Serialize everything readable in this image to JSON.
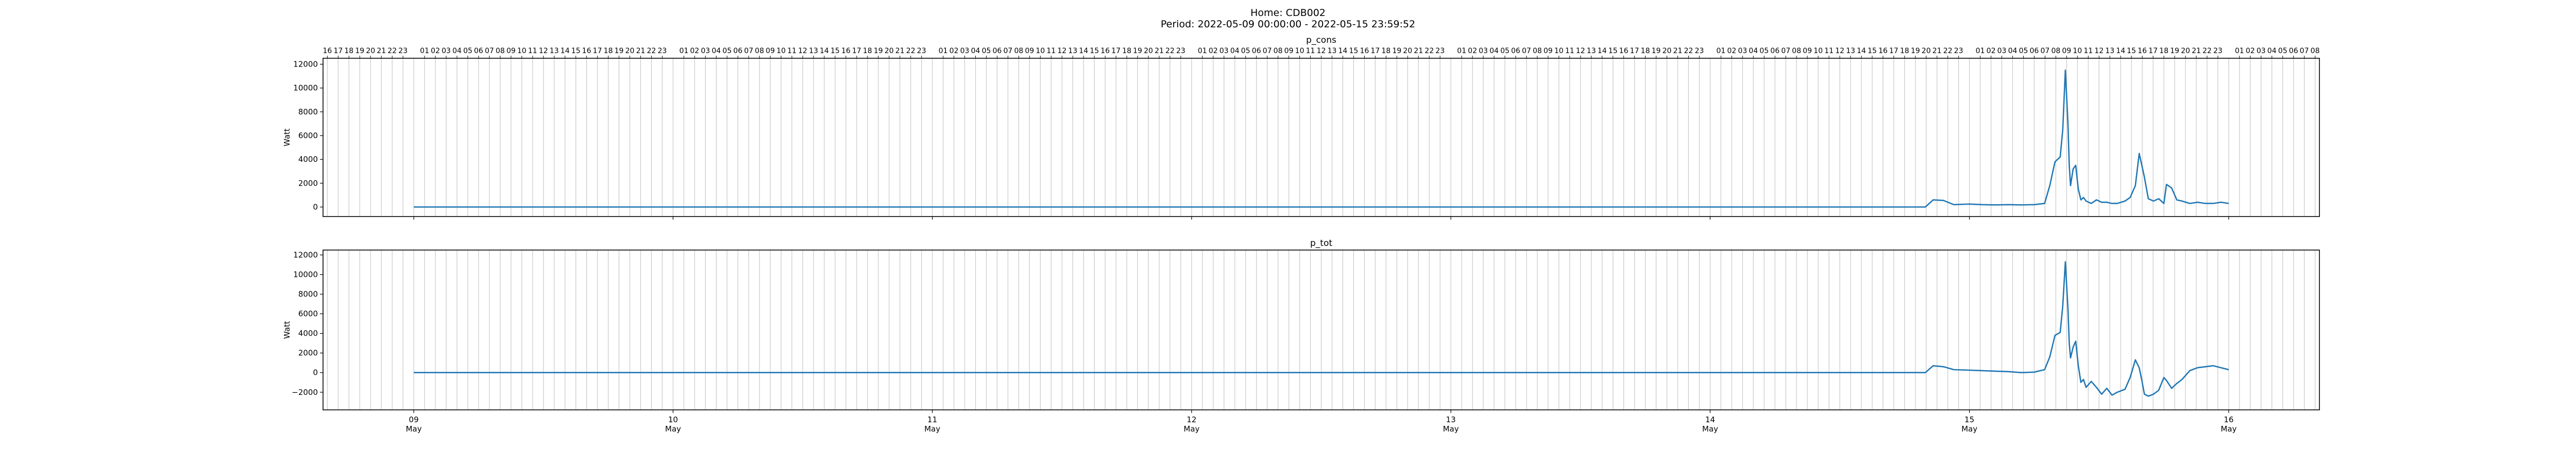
{
  "header": {
    "title_line1": "Home: CDB002",
    "title_line2": "Period: 2022-05-09 00:00:00 - 2022-05-15 23:59:52"
  },
  "colors": {
    "line": "#1f77b4",
    "hour_grid": "#c8c8c8",
    "axis": "#000000"
  },
  "chart_data": [
    {
      "type": "line",
      "title": "p_cons",
      "ylabel": "Watt",
      "xlabel": "",
      "ylim": [
        -800,
        12500
      ],
      "yticks": [
        0,
        2000,
        4000,
        6000,
        8000,
        10000,
        12000
      ],
      "xlim": [
        -0.35,
        7.35
      ],
      "grid": "hourly vertical lines",
      "top_hour_labels": true,
      "bottom_tick_labels": false,
      "series": [
        {
          "name": "p_cons",
          "x": [
            0,
            5.83,
            5.86,
            5.9,
            5.94,
            6.0,
            6.05,
            6.1,
            6.15,
            6.2,
            6.25,
            6.29,
            6.31,
            6.33,
            6.35,
            6.36,
            6.37,
            6.38,
            6.385,
            6.39,
            6.4,
            6.41,
            6.42,
            6.43,
            6.44,
            6.45,
            6.47,
            6.49,
            6.51,
            6.53,
            6.55,
            6.57,
            6.6,
            6.62,
            6.64,
            6.655,
            6.665,
            6.675,
            6.69,
            6.71,
            6.73,
            6.75,
            6.76,
            6.78,
            6.8,
            6.82,
            6.85,
            6.88,
            6.91,
            6.94,
            6.97,
            7.0
          ],
          "values": [
            0,
            0,
            600,
            550,
            200,
            250,
            200,
            180,
            200,
            180,
            200,
            300,
            1800,
            3800,
            4200,
            6500,
            11500,
            7000,
            3500,
            1800,
            3200,
            3500,
            1500,
            600,
            800,
            500,
            300,
            600,
            400,
            400,
            300,
            300,
            500,
            800,
            1800,
            4500,
            3500,
            2500,
            700,
            500,
            700,
            300,
            1900,
            1600,
            600,
            500,
            300,
            400,
            300,
            300,
            400,
            300
          ]
        }
      ]
    },
    {
      "type": "line",
      "title": "p_tot",
      "ylabel": "Watt",
      "xlabel": "",
      "ylim": [
        -3800,
        12500
      ],
      "yticks": [
        -2000,
        0,
        2000,
        4000,
        6000,
        8000,
        10000,
        12000
      ],
      "xlim": [
        -0.35,
        7.35
      ],
      "grid": "hourly vertical lines",
      "top_hour_labels": false,
      "bottom_tick_labels": true,
      "x_tick_labels": [
        "09\nMay",
        "10\nMay",
        "11\nMay",
        "12\nMay",
        "13\nMay",
        "14\nMay",
        "15\nMay",
        "16\nMay"
      ],
      "series": [
        {
          "name": "p_tot",
          "x": [
            0,
            5.83,
            5.86,
            5.9,
            5.94,
            6.0,
            6.05,
            6.1,
            6.15,
            6.2,
            6.25,
            6.29,
            6.31,
            6.33,
            6.35,
            6.36,
            6.37,
            6.38,
            6.385,
            6.39,
            6.4,
            6.41,
            6.42,
            6.43,
            6.44,
            6.45,
            6.47,
            6.49,
            6.51,
            6.53,
            6.55,
            6.57,
            6.6,
            6.62,
            6.64,
            6.655,
            6.665,
            6.675,
            6.69,
            6.71,
            6.73,
            6.75,
            6.76,
            6.78,
            6.8,
            6.82,
            6.85,
            6.88,
            6.91,
            6.94,
            6.97,
            7.0
          ],
          "values": [
            0,
            0,
            700,
            600,
            300,
            250,
            200,
            150,
            100,
            0,
            50,
            300,
            1600,
            3800,
            4100,
            6800,
            11300,
            6500,
            3000,
            1500,
            2600,
            3200,
            700,
            -1000,
            -700,
            -1500,
            -900,
            -1500,
            -2200,
            -1600,
            -2300,
            -2000,
            -1700,
            -500,
            1300,
            500,
            -800,
            -2200,
            -2400,
            -2200,
            -1800,
            -500,
            -800,
            -1600,
            -1100,
            -700,
            200,
            500,
            600,
            700,
            500,
            300
          ]
        }
      ]
    }
  ]
}
